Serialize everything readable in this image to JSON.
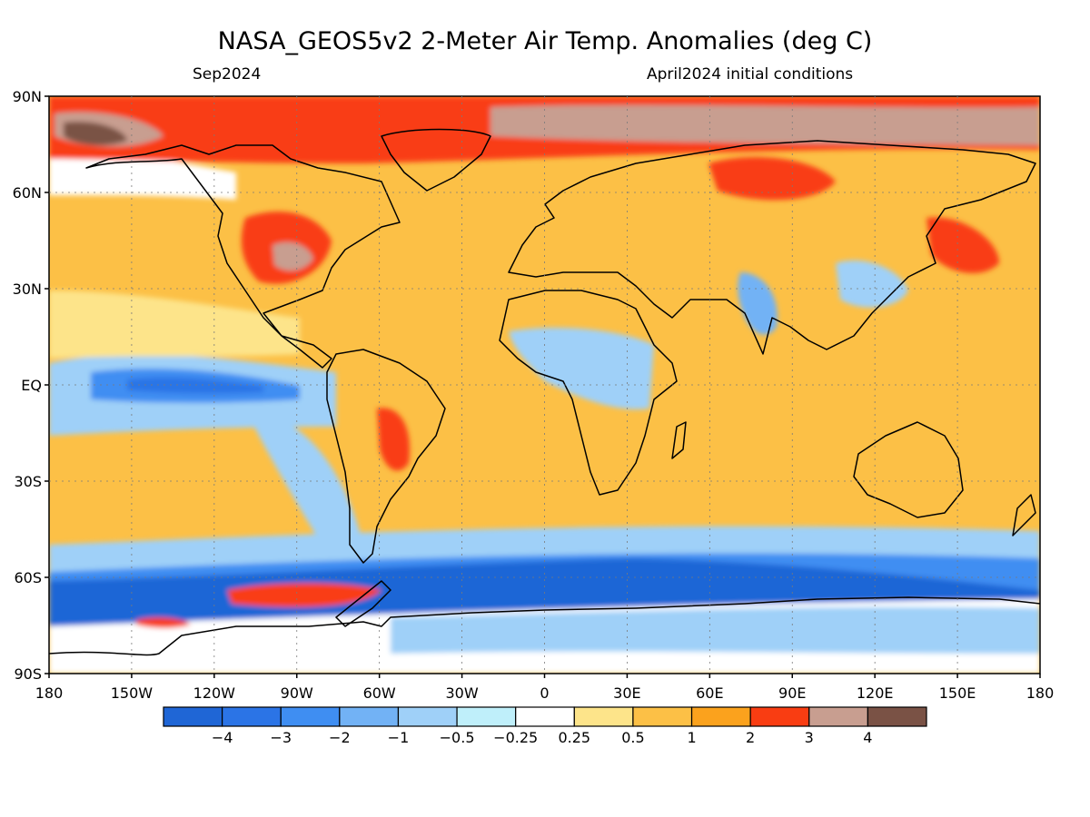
{
  "title": "NASA_GEOS5v2 2-Meter Air Temp. Anomalies (deg C)",
  "subtitle_left": "Sep2024",
  "subtitle_right": "April2024 initial conditions",
  "map": {
    "lat_labels": [
      "90N",
      "60N",
      "30N",
      "EQ",
      "30S",
      "60S",
      "90S"
    ],
    "lon_labels": [
      "180",
      "150W",
      "120W",
      "90W",
      "60W",
      "30W",
      "0",
      "30E",
      "60E",
      "90E",
      "120E",
      "150E",
      "180"
    ]
  },
  "colorbar": {
    "colors": [
      "#1f66d6",
      "#2b74e6",
      "#3f8ef2",
      "#72b2f5",
      "#9fd0f8",
      "#bfeffa",
      "#ffffff",
      "#fde48a",
      "#fcc046",
      "#fba21d",
      "#f93d12",
      "#c89e90",
      "#7a5245"
    ],
    "labels": [
      "-4",
      "-3",
      "-2",
      "-1",
      "-0.5",
      "-0.25",
      "0.25",
      "0.5",
      "1",
      "2",
      "3",
      "4"
    ]
  }
}
